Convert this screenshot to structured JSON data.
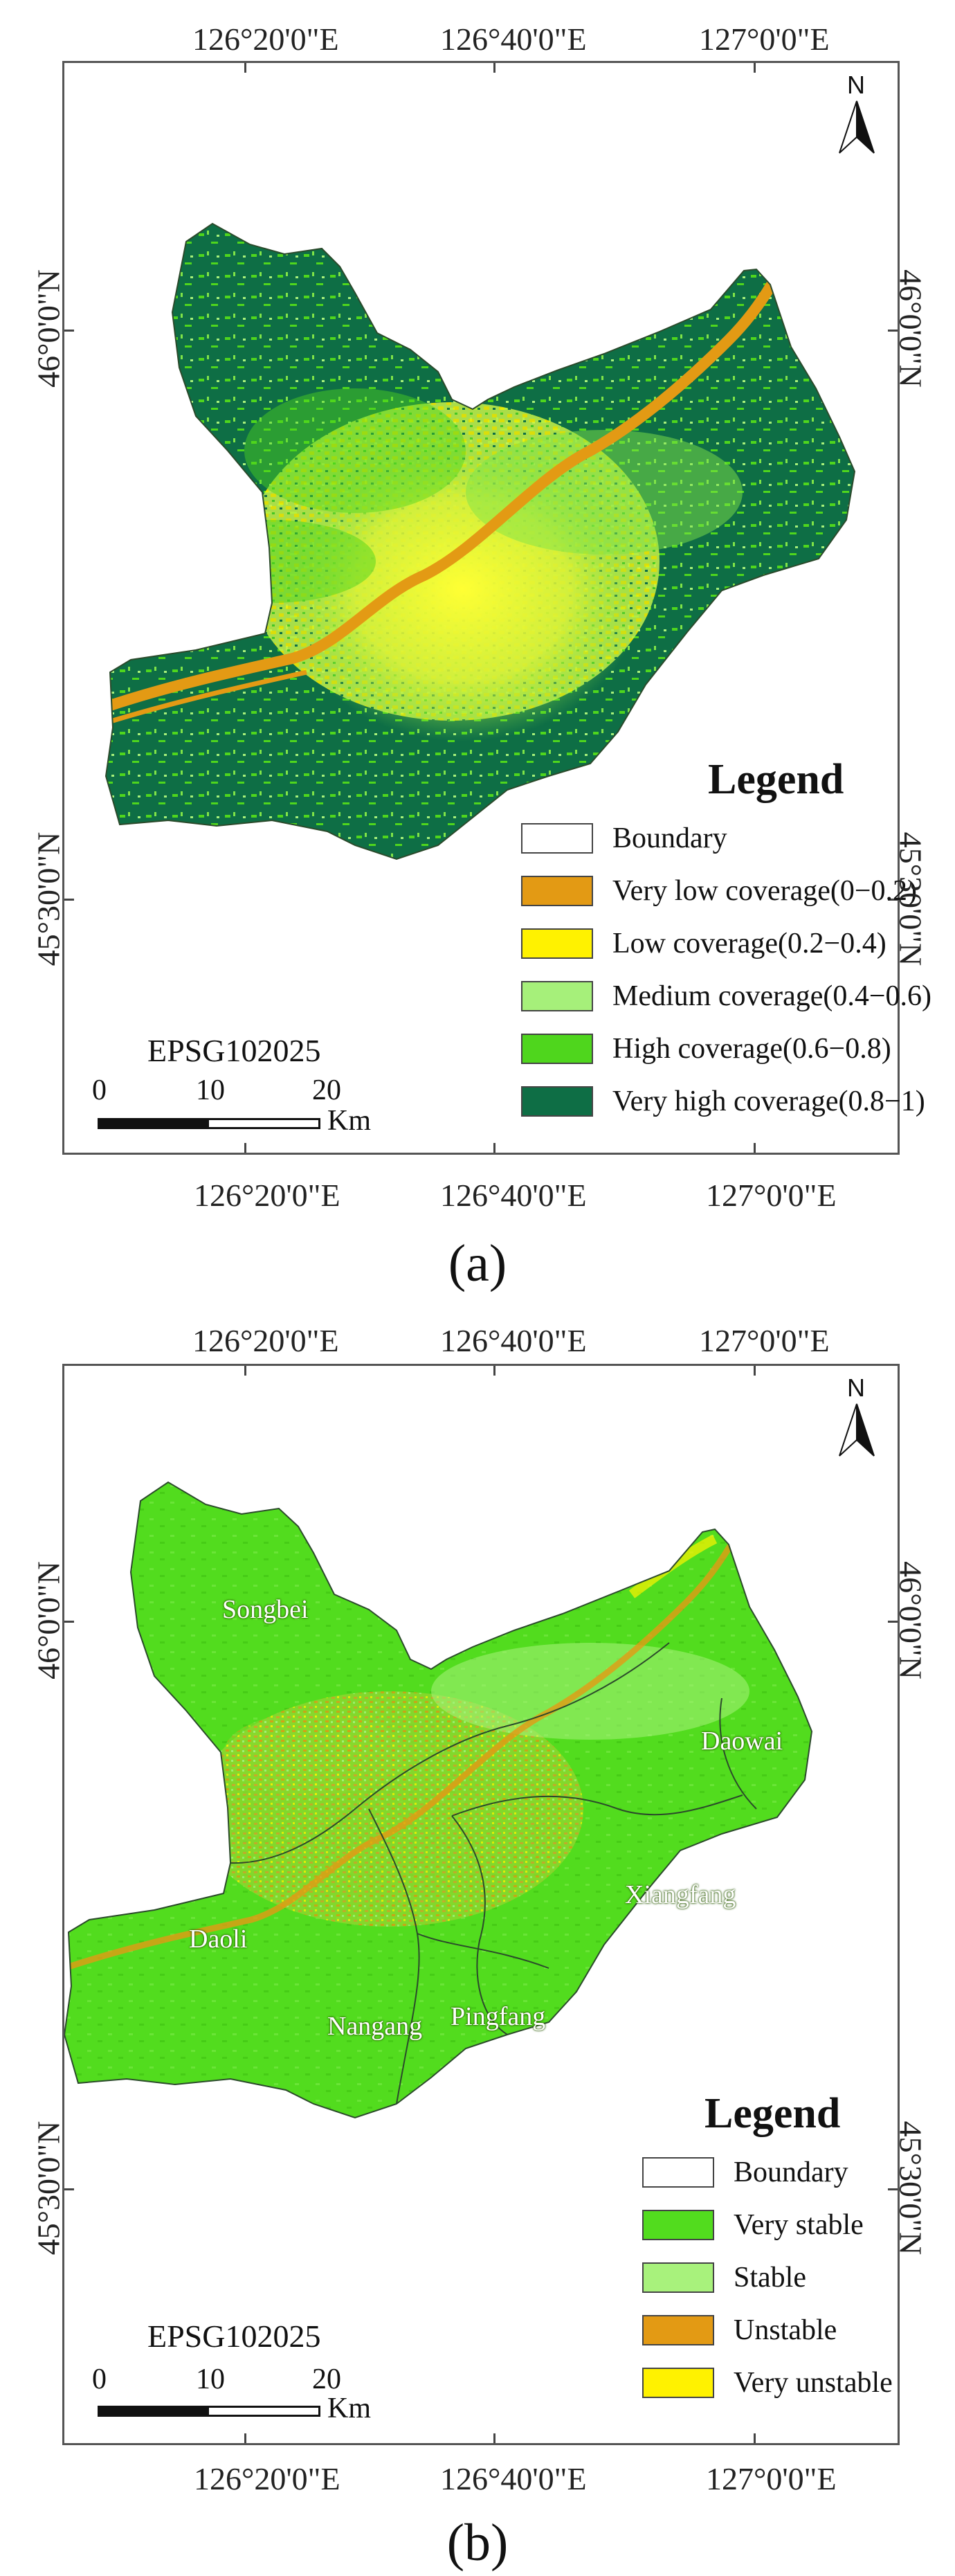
{
  "panel_a": {
    "top_coords": [
      "126°20'0\"E",
      "126°40'0\"E",
      "127°0'0\"E"
    ],
    "bottom_coords": [
      "126°20'0\"E",
      "126°40'0\"E",
      "127°0'0\"E"
    ],
    "left_coords": [
      "46°0'0\"N",
      "45°30'0\"N"
    ],
    "right_coords": [
      "46°0'0\"N",
      "45°30'0\"N"
    ],
    "north_label": "N",
    "epsg": "EPSG102025",
    "scale": {
      "labels": [
        "0",
        "10",
        "20"
      ],
      "unit": "Km"
    },
    "legend": {
      "title": "Legend",
      "items": [
        {
          "label": "Boundary",
          "color": "#ffffff"
        },
        {
          "label": "Very low coverage(0−0.2)",
          "color": "#e39a14"
        },
        {
          "label": "Low coverage(0.2−0.4)",
          "color": "#fff200"
        },
        {
          "label": "Medium coverage(0.4−0.6)",
          "color": "#a6f07a"
        },
        {
          "label": "High coverage(0.6−0.8)",
          "color": "#4fd61d"
        },
        {
          "label": "Very high coverage(0.8−1)",
          "color": "#0e6e45"
        }
      ]
    },
    "caption": "(a)"
  },
  "panel_b": {
    "top_coords": [
      "126°20'0\"E",
      "126°40'0\"E",
      "127°0'0\"E"
    ],
    "bottom_coords": [
      "126°20'0\"E",
      "126°40'0\"E",
      "127°0'0\"E"
    ],
    "left_coords": [
      "46°0'0\"N",
      "45°30'0\"N"
    ],
    "right_coords": [
      "46°0'0\"N",
      "45°30'0\"N"
    ],
    "north_label": "N",
    "epsg": "EPSG102025",
    "scale": {
      "labels": [
        "0",
        "10",
        "20"
      ],
      "unit": "Km"
    },
    "districts": [
      "Songbei",
      "Daowai",
      "Xiangfang",
      "Daoli",
      "Nangang",
      "Pingfang"
    ],
    "legend": {
      "title": "Legend",
      "items": [
        {
          "label": "Boundary",
          "color": "#ffffff"
        },
        {
          "label": "Very stable",
          "color": "#52dc1e"
        },
        {
          "label": "Stable",
          "color": "#a8f27c"
        },
        {
          "label": "Unstable",
          "color": "#e39a14"
        },
        {
          "label": "Very unstable",
          "color": "#fff200"
        }
      ]
    },
    "caption": "(b)"
  }
}
